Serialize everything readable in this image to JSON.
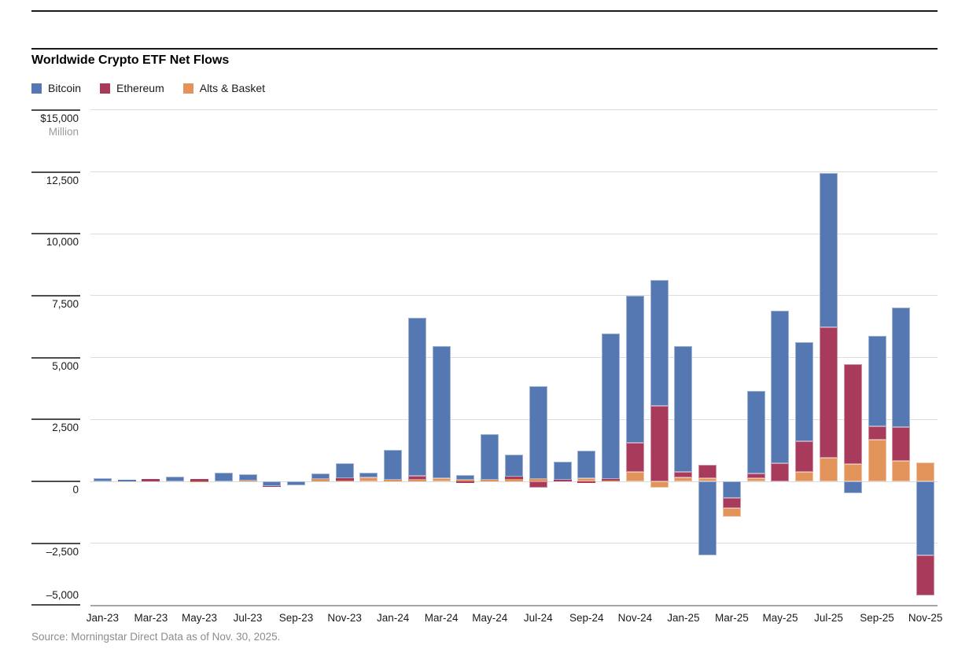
{
  "title": "Worldwide Crypto ETF Net Flows",
  "source": "Source: Morningstar Direct Data as of Nov. 30, 2025.",
  "legend": [
    {
      "label": "Bitcoin",
      "color": "#5577b2"
    },
    {
      "label": "Ethereum",
      "color": "#a83a5c"
    },
    {
      "label": "Alts & Basket",
      "color": "#e2945a"
    }
  ],
  "y_axis": {
    "top_label": "$15,000",
    "unit_label": "Million",
    "ticks": [
      {
        "value": 15000,
        "label": "$15,000"
      },
      {
        "value": 12500,
        "label": "12,500"
      },
      {
        "value": 10000,
        "label": "10,000"
      },
      {
        "value": 7500,
        "label": "7,500"
      },
      {
        "value": 5000,
        "label": "5,000"
      },
      {
        "value": 2500,
        "label": "2,500"
      },
      {
        "value": 0,
        "label": "0"
      },
      {
        "value": -2500,
        "label": "–2,500"
      },
      {
        "value": -5000,
        "label": "–5,000"
      }
    ]
  },
  "chart_data": {
    "type": "bar",
    "stacked": true,
    "title": "Worldwide Crypto ETF Net Flows",
    "ylabel": "$ Million",
    "ylim": [
      -5000,
      15000
    ],
    "grid": true,
    "legend_position": "top-left",
    "categories": [
      "Jan-23",
      "Feb-23",
      "Mar-23",
      "Apr-23",
      "May-23",
      "Jun-23",
      "Jul-23",
      "Aug-23",
      "Sep-23",
      "Oct-23",
      "Nov-23",
      "Dec-23",
      "Jan-24",
      "Feb-24",
      "Mar-24",
      "Apr-24",
      "May-24",
      "Jun-24",
      "Jul-24",
      "Aug-24",
      "Sep-24",
      "Oct-24",
      "Nov-24",
      "Dec-24",
      "Jan-25",
      "Feb-25",
      "Mar-25",
      "Apr-25",
      "May-25",
      "Jun-25",
      "Jul-25",
      "Aug-25",
      "Sep-25",
      "Oct-25",
      "Nov-25"
    ],
    "x_tick_labels": [
      "Jan-23",
      "Mar-23",
      "May-23",
      "Jul-23",
      "Sep-23",
      "Nov-23",
      "Jan-24",
      "Mar-24",
      "May-24",
      "Jul-24",
      "Sep-24",
      "Nov-24",
      "Jan-25",
      "Mar-25",
      "May-25",
      "Jul-25",
      "Sep-25",
      "Nov-25"
    ],
    "series": [
      {
        "name": "Bitcoin",
        "color": "#5577b2",
        "values": [
          120,
          60,
          0,
          200,
          0,
          350,
          250,
          -180,
          -150,
          215,
          585,
          200,
          1220,
          6400,
          5360,
          180,
          1850,
          880,
          3740,
          730,
          1100,
          5900,
          5940,
          5100,
          5100,
          -3000,
          -660,
          3340,
          6150,
          4020,
          6220,
          -480,
          3650,
          4820,
          -3000
        ]
      },
      {
        "name": "Ethereum",
        "color": "#a83a5c",
        "values": [
          0,
          0,
          95,
          0,
          90,
          0,
          0,
          -25,
          0,
          0,
          95,
          0,
          0,
          160,
          0,
          -60,
          0,
          95,
          -255,
          60,
          -60,
          60,
          1170,
          3050,
          200,
          540,
          -420,
          180,
          745,
          1220,
          5280,
          4020,
          565,
          1385,
          -1600
        ]
      },
      {
        "name": "Alts & Basket",
        "color": "#e2945a",
        "values": [
          0,
          0,
          0,
          0,
          -30,
          0,
          30,
          0,
          0,
          95,
          40,
          165,
          60,
          50,
          120,
          70,
          60,
          95,
          95,
          0,
          130,
          30,
          380,
          -250,
          170,
          120,
          -360,
          140,
          0,
          395,
          950,
          710,
          1670,
          820,
          750
        ]
      }
    ]
  }
}
